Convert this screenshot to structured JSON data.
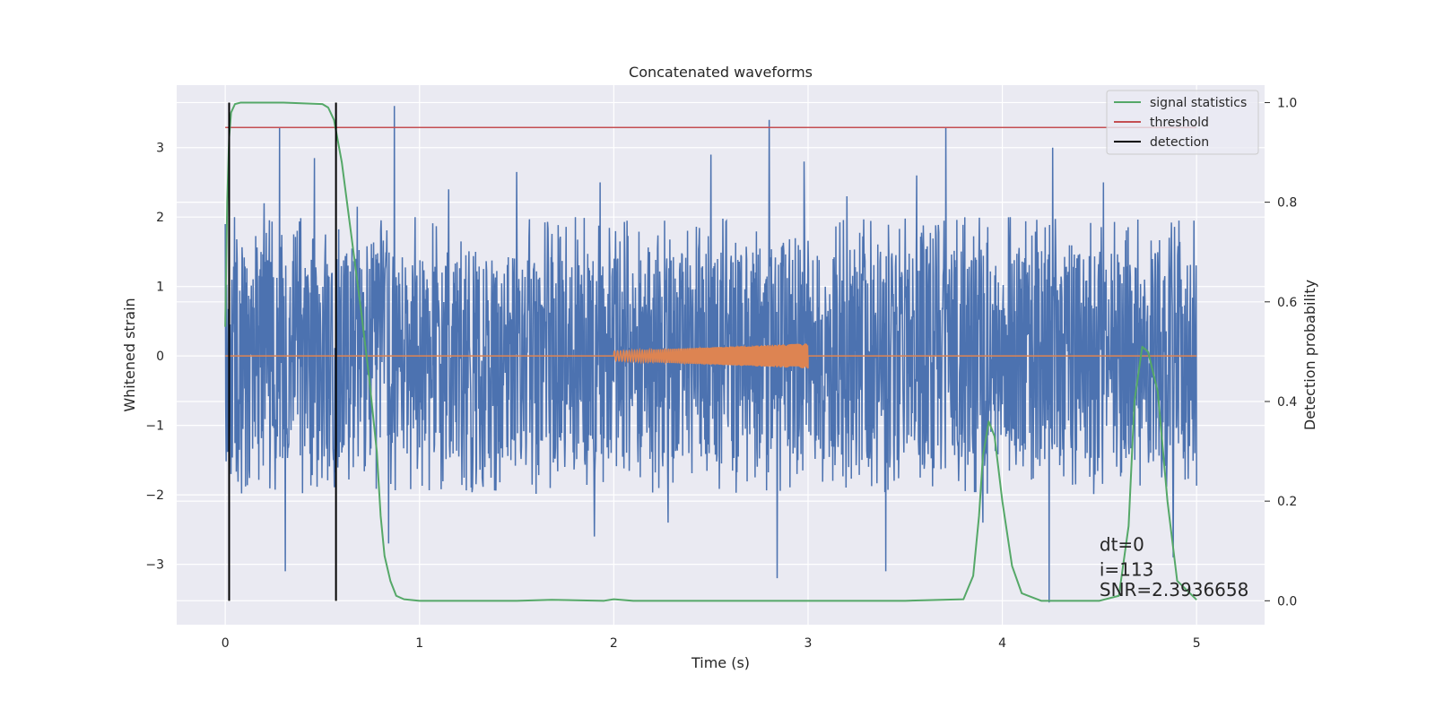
{
  "chart_data": {
    "type": "line",
    "title": "Concatenated waveforms",
    "xlabel": "Time (s)",
    "ylabel": "Whitened strain",
    "ylabel_right": "Detection probability",
    "xlim": [
      -0.25,
      5.35
    ],
    "ylim": [
      -3.87,
      3.9
    ],
    "ylim_right": [
      -0.048,
      1.035
    ],
    "x_ticks": [
      0,
      1,
      2,
      3,
      4,
      5
    ],
    "y_ticks": [
      -3,
      -2,
      -1,
      0,
      1,
      2,
      3
    ],
    "y_ticks_right": [
      0.0,
      0.2,
      0.4,
      0.6,
      0.8,
      1.0
    ],
    "x_tick_labels": [
      "0",
      "1",
      "2",
      "3",
      "4",
      "5"
    ],
    "y_tick_labels": [
      "−3",
      "−2",
      "−1",
      "0",
      "1",
      "2",
      "3"
    ],
    "y_tick_labels_right": [
      "0.0",
      "0.2",
      "0.4",
      "0.6",
      "0.8",
      "1.0"
    ],
    "grid": true,
    "legend_position": "top-right",
    "series": [
      {
        "name": "",
        "axis": "left",
        "color": "#4c72b0",
        "kind": "noise",
        "x_range": [
          0,
          5
        ],
        "typical_band": [
          -0.7,
          0.75
        ],
        "peaks": [
          {
            "x": 0.0,
            "y": 1.9
          },
          {
            "x": 0.03,
            "y": -1.7
          },
          {
            "x": 0.2,
            "y": 2.2
          },
          {
            "x": 0.28,
            "y": 3.3
          },
          {
            "x": 0.31,
            "y": -3.1
          },
          {
            "x": 0.46,
            "y": 2.85
          },
          {
            "x": 0.68,
            "y": 2.15
          },
          {
            "x": 0.87,
            "y": 3.6
          },
          {
            "x": 0.84,
            "y": -2.7
          },
          {
            "x": 1.15,
            "y": 2.4
          },
          {
            "x": 1.5,
            "y": 2.65
          },
          {
            "x": 1.9,
            "y": -2.6
          },
          {
            "x": 1.93,
            "y": 2.5
          },
          {
            "x": 2.28,
            "y": -2.4
          },
          {
            "x": 2.5,
            "y": 2.9
          },
          {
            "x": 2.8,
            "y": 3.4
          },
          {
            "x": 2.84,
            "y": -3.2
          },
          {
            "x": 2.98,
            "y": 2.8
          },
          {
            "x": 3.2,
            "y": 2.3
          },
          {
            "x": 3.4,
            "y": -3.1
          },
          {
            "x": 3.56,
            "y": 2.6
          },
          {
            "x": 3.71,
            "y": 3.3
          },
          {
            "x": 3.9,
            "y": -2.4
          },
          {
            "x": 4.04,
            "y": 2.0
          },
          {
            "x": 4.24,
            "y": -3.55
          },
          {
            "x": 4.26,
            "y": 3.0
          },
          {
            "x": 4.52,
            "y": 2.5
          },
          {
            "x": 4.88,
            "y": -2.9
          },
          {
            "x": 4.91,
            "y": 1.95
          }
        ]
      },
      {
        "name": "",
        "axis": "left",
        "color": "#dd8452",
        "kind": "chirp",
        "x": [
          0,
          2.0,
          3.0,
          5.0
        ],
        "amplitude_start": 0.07,
        "amplitude_end": 0.18,
        "chirp_start": 2.0,
        "chirp_end": 3.0
      },
      {
        "name": "signal statistics",
        "axis": "right",
        "color": "#55a868",
        "x": [
          0.0,
          0.01,
          0.02,
          0.03,
          0.05,
          0.08,
          0.12,
          0.3,
          0.5,
          0.53,
          0.56,
          0.6,
          0.65,
          0.7,
          0.74,
          0.78,
          0.8,
          0.82,
          0.85,
          0.88,
          0.92,
          1.0,
          1.5,
          1.68,
          1.95,
          2.0,
          2.1,
          2.5,
          3.0,
          3.5,
          3.8,
          3.85,
          3.88,
          3.9,
          3.93,
          3.96,
          4.0,
          4.05,
          4.1,
          4.2,
          4.5,
          4.6,
          4.65,
          4.68,
          4.72,
          4.75,
          4.8,
          4.85,
          4.9,
          5.0
        ],
        "y": [
          0.55,
          0.8,
          0.93,
          0.98,
          0.997,
          1.0,
          1.0,
          1.0,
          0.997,
          0.99,
          0.965,
          0.88,
          0.73,
          0.58,
          0.45,
          0.3,
          0.17,
          0.09,
          0.04,
          0.01,
          0.003,
          0.0,
          0.0,
          0.002,
          0.0,
          0.003,
          0.0,
          0.0,
          0.0,
          0.0,
          0.003,
          0.05,
          0.17,
          0.29,
          0.36,
          0.33,
          0.2,
          0.07,
          0.015,
          0.0,
          0.0,
          0.01,
          0.15,
          0.4,
          0.51,
          0.5,
          0.42,
          0.2,
          0.04,
          0.002
        ]
      },
      {
        "name": "threshold",
        "axis": "right",
        "color": "#c44e52",
        "x": [
          0.0,
          5.0
        ],
        "y": [
          0.95,
          0.95
        ]
      },
      {
        "name": "detection",
        "axis": "right",
        "color": "#000000",
        "kind": "vlines",
        "x": [
          0.02,
          0.57
        ],
        "ymin": 0.0,
        "ymax": 1.0
      }
    ],
    "annotations": [
      {
        "text": "dt=0",
        "x": 4.5,
        "y_right": 0.1
      },
      {
        "text": "i=113",
        "x": 4.5,
        "y_right": 0.05
      },
      {
        "text": "SNR=2.3936658",
        "x": 4.5,
        "y_right": 0.01
      }
    ]
  }
}
